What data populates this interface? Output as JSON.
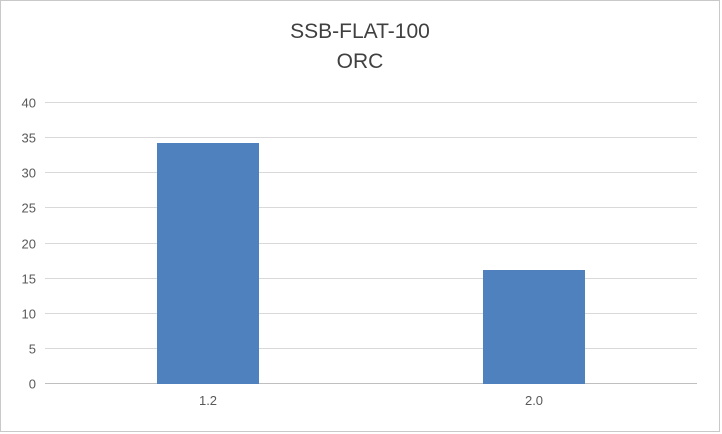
{
  "chart_data": {
    "type": "bar",
    "title": "SSB-FLAT-100",
    "subtitle": "ORC",
    "categories": [
      "1.2",
      "2.0"
    ],
    "values": [
      34.3,
      16.2
    ],
    "xlabel": "",
    "ylabel": "",
    "ylim": [
      0,
      40
    ],
    "ytick_step": 5,
    "yticks": [
      0,
      5,
      10,
      15,
      20,
      25,
      30,
      35,
      40
    ],
    "grid": "horizontal",
    "legend_position": "none",
    "bar_color": "#4e81bd",
    "gridline_color": "#d9d9d9",
    "axis_line_color": "#bfbfbf",
    "title_color": "#404040",
    "tick_label_color": "#595959"
  }
}
